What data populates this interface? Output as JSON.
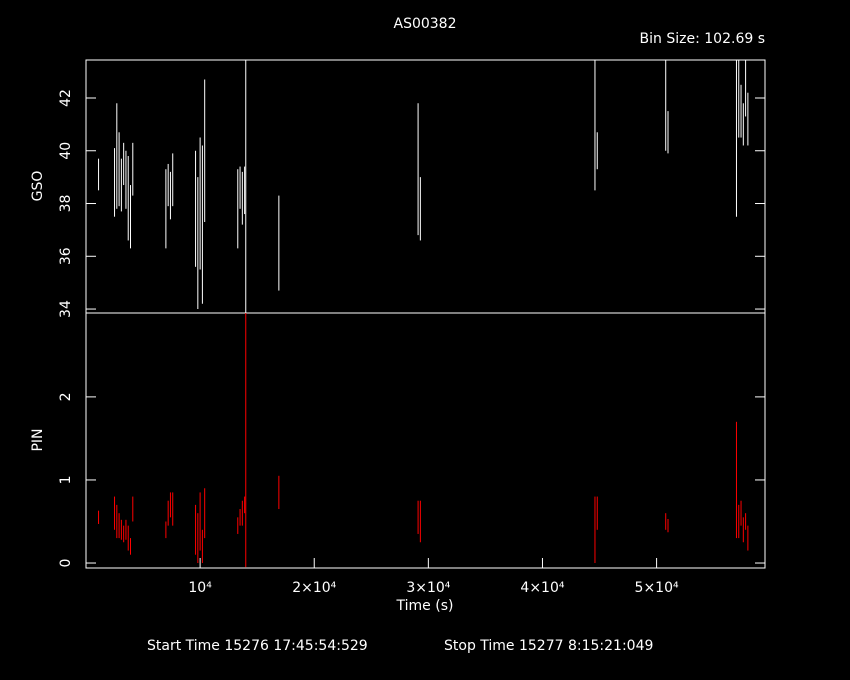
{
  "chart_data": [
    {
      "type": "errorbar",
      "title": "AS00382",
      "subtitle": "Bin Size: 102.69 s",
      "ylabel": "GSO",
      "color": "#ffffff",
      "x": [
        1100,
        2500,
        2700,
        2900,
        3100,
        3300,
        3500,
        3700,
        3900,
        4100,
        7000,
        7200,
        7400,
        7600,
        9600,
        9800,
        10000,
        10200,
        10400,
        13300,
        13500,
        13700,
        13900,
        14000,
        16900,
        29100,
        29300,
        44600,
        44800,
        50800,
        51000,
        57000,
        57200,
        57400,
        57600,
        57800,
        58000
      ],
      "values": [
        39.1,
        38.8,
        39.8,
        39.3,
        38.7,
        39.5,
        38.9,
        38.2,
        37.5,
        39.3,
        37.8,
        38.7,
        38.3,
        38.9,
        37.8,
        36.5,
        38,
        37.2,
        40,
        37.8,
        38.6,
        38.2,
        38.5,
        38.6,
        36.5,
        39.3,
        37.8,
        41,
        40,
        41.8,
        40.7,
        40.5,
        42,
        41.5,
        41,
        42.5,
        41.2
      ],
      "errors": [
        0.6,
        1.3,
        2,
        1.4,
        1,
        0.8,
        1.1,
        1.6,
        1.2,
        1,
        1.5,
        0.8,
        0.9,
        1,
        2.2,
        2.5,
        2.5,
        3,
        2.7,
        1.5,
        0.8,
        1,
        0.9,
        5.2,
        1.8,
        2.5,
        1.2,
        2.5,
        0.7,
        1.8,
        0.8,
        3,
        1.5,
        1,
        0.8,
        1.2,
        1
      ],
      "xlim": [
        0,
        59500
      ],
      "ylim": [
        33.85,
        43.44
      ],
      "yticks": [
        34,
        36,
        38,
        40,
        42
      ]
    },
    {
      "type": "errorbar",
      "ylabel": "PIN",
      "xlabel": "Time (s)",
      "color": "#ff0000",
      "x": [
        1100,
        2500,
        2700,
        2900,
        3100,
        3300,
        3500,
        3700,
        3900,
        4100,
        7000,
        7200,
        7400,
        7600,
        9600,
        9800,
        10000,
        10200,
        10400,
        13300,
        13500,
        13700,
        13900,
        14000,
        16900,
        29100,
        29300,
        44600,
        44800,
        50800,
        51000,
        57000,
        57200,
        57400,
        57600,
        57800,
        58000
      ],
      "values": [
        0.55,
        0.6,
        0.5,
        0.45,
        0.4,
        0.35,
        0.4,
        0.3,
        0.2,
        0.65,
        0.4,
        0.6,
        0.7,
        0.65,
        0.4,
        0.3,
        0.5,
        0.2,
        0.6,
        0.45,
        0.55,
        0.6,
        0.7,
        1.5,
        0.85,
        0.55,
        0.5,
        0.4,
        0.6,
        0.5,
        0.45,
        1,
        0.5,
        0.6,
        0.4,
        0.5,
        0.3
      ],
      "errors": [
        0.08,
        0.2,
        0.2,
        0.15,
        0.12,
        0.1,
        0.12,
        0.15,
        0.1,
        0.15,
        0.1,
        0.15,
        0.15,
        0.2,
        0.3,
        0.3,
        0.35,
        0.2,
        0.3,
        0.1,
        0.1,
        0.15,
        0.1,
        1.55,
        0.2,
        0.2,
        0.25,
        0.4,
        0.2,
        0.1,
        0.08,
        0.7,
        0.2,
        0.15,
        0.15,
        0.1,
        0.15
      ],
      "xlim": [
        0,
        59500
      ],
      "ylim": [
        -0.06,
        3.01
      ],
      "yticks": [
        0,
        1,
        2
      ],
      "xticks": [
        {
          "value": 10000,
          "label": "10⁴"
        },
        {
          "value": 20000,
          "label": "2×10⁴"
        },
        {
          "value": 30000,
          "label": "3×10⁴"
        },
        {
          "value": 40000,
          "label": "4×10⁴"
        },
        {
          "value": 50000,
          "label": "5×10⁴"
        }
      ]
    }
  ],
  "footer": {
    "start": "Start Time 15276 17:45:54:529",
    "stop": "Stop Time 15277  8:15:21:049"
  }
}
